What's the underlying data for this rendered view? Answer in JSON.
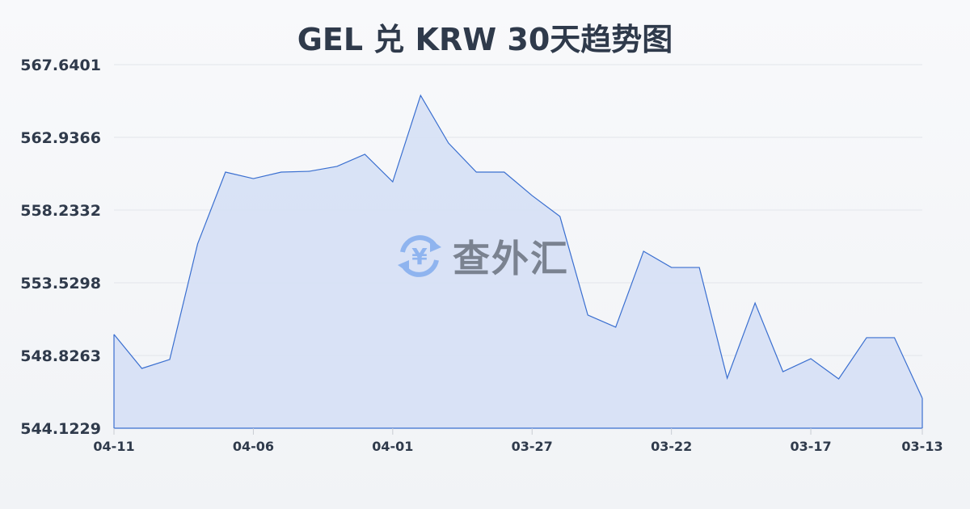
{
  "chart_data": {
    "type": "area",
    "title": "GEL 兑 KRW 30天趋势图",
    "xlabel": "",
    "ylabel": "",
    "ylim": [
      544.1229,
      567.6401
    ],
    "y_ticks": [
      "567.6401",
      "562.9366",
      "558.2332",
      "553.5298",
      "548.8263",
      "544.1229"
    ],
    "x_ticks": [
      "04-11",
      "04-06",
      "04-01",
      "03-27",
      "03-22",
      "03-17",
      "03-13"
    ],
    "x": [
      "04-11",
      "04-10",
      "04-09",
      "04-08",
      "04-07",
      "04-06",
      "04-05",
      "04-04",
      "04-03",
      "04-02",
      "04-01",
      "03-31",
      "03-30",
      "03-29",
      "03-28",
      "03-27",
      "03-26",
      "03-25",
      "03-24",
      "03-23",
      "03-22",
      "03-21",
      "03-20",
      "03-19",
      "03-18",
      "03-17",
      "03-16",
      "03-15",
      "03-14",
      "03-13"
    ],
    "values": [
      550.19,
      547.99,
      548.57,
      556.04,
      560.69,
      560.27,
      560.69,
      560.74,
      561.06,
      561.84,
      560.06,
      565.65,
      562.57,
      560.69,
      560.69,
      559.17,
      557.82,
      551.44,
      550.66,
      555.57,
      554.52,
      554.52,
      547.36,
      552.22,
      547.78,
      548.62,
      547.31,
      549.98,
      549.98,
      546.06
    ],
    "grid": true,
    "legend": "none",
    "colors": {
      "line": "#3a6fd0",
      "fill": "#d6e0f5",
      "grid": "#e2e5ea",
      "text": "#2f3a4b"
    }
  },
  "watermark": {
    "text": "查外汇",
    "icon": "yen-exchange-icon"
  }
}
